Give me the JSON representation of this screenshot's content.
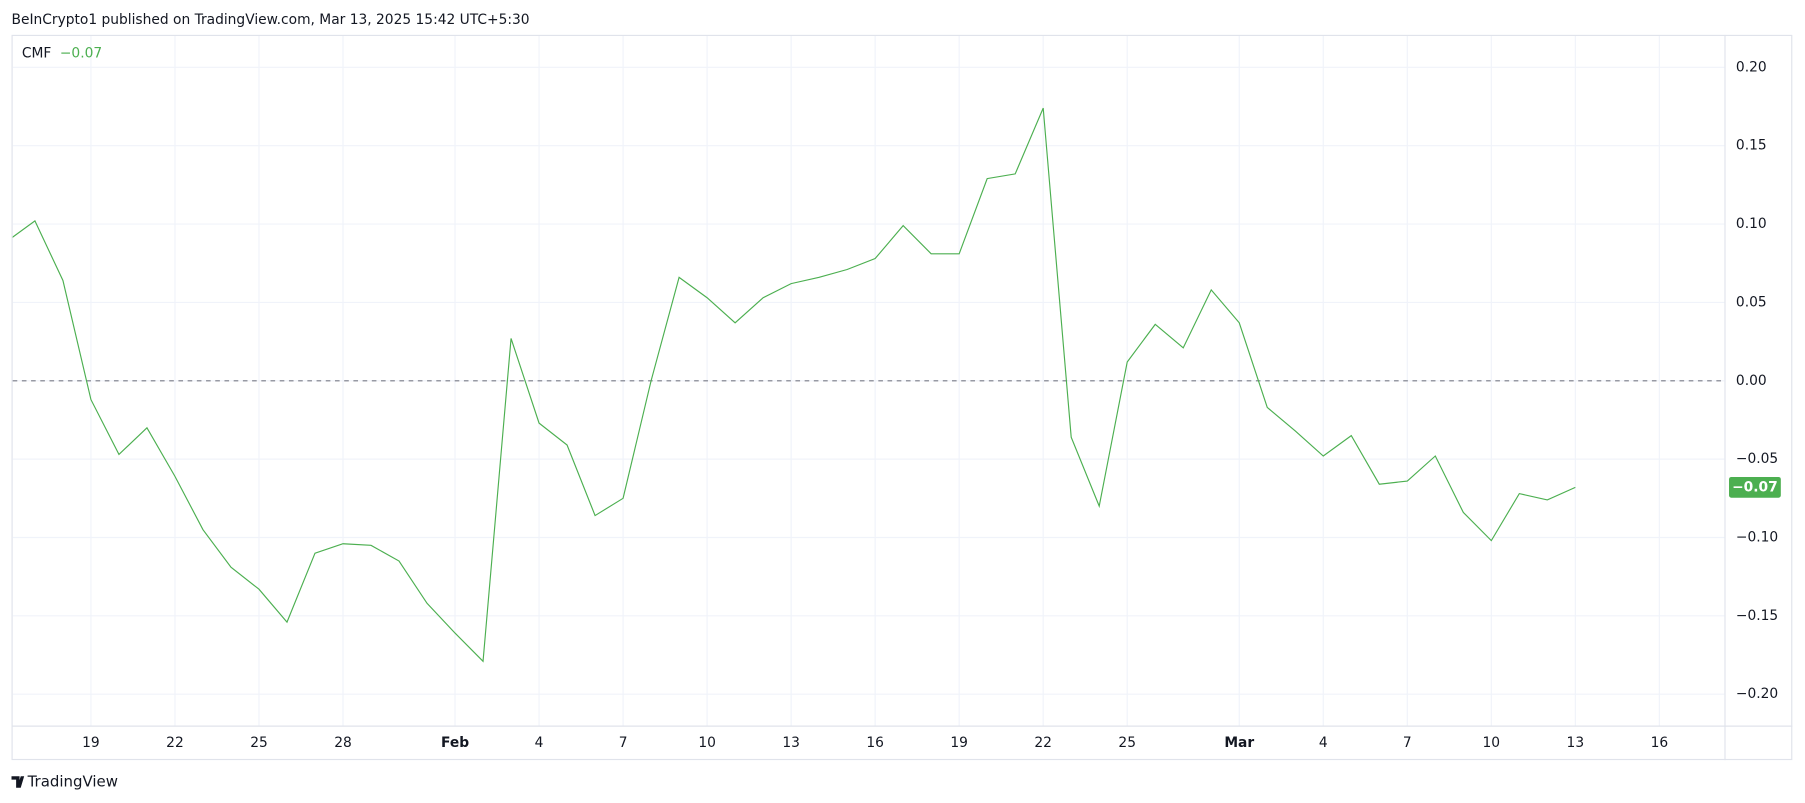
{
  "header": "BeInCrypto1 published on TradingView.com, Mar 13, 2025 15:42 UTC+5:30",
  "footer": "TradingView",
  "chart_data": {
    "type": "line",
    "categories": [
      null,
      null,
      null,
      "19",
      null,
      null,
      "22",
      null,
      null,
      "25",
      null,
      null,
      "28",
      null,
      null,
      null,
      "Feb",
      null,
      null,
      "4",
      null,
      null,
      "7",
      null,
      null,
      "10",
      null,
      null,
      "13",
      null,
      null,
      "16",
      null,
      null,
      "19",
      null,
      null,
      "22",
      null,
      null,
      "25",
      null,
      null,
      null,
      "Mar",
      null,
      null,
      "4",
      null,
      null,
      "7",
      null,
      null,
      "10",
      null,
      null,
      "13",
      null,
      null,
      "16",
      null
    ],
    "series": [
      {
        "name": "CMF",
        "color": "#4caf50",
        "last_label": "−0.07",
        "values": [
          0.089,
          0.102,
          0.064,
          -0.012,
          -0.047,
          -0.03,
          -0.061,
          -0.095,
          -0.119,
          -0.133,
          -0.154,
          -0.11,
          -0.104,
          -0.105,
          -0.115,
          -0.142,
          -0.161,
          -0.179,
          0.027,
          -0.027,
          -0.041,
          -0.086,
          -0.075,
          0.0,
          0.066,
          0.053,
          0.037,
          0.053,
          0.062,
          0.066,
          0.071,
          0.078,
          0.099,
          0.081,
          0.081,
          0.129,
          0.132,
          0.174,
          -0.036,
          -0.08,
          0.012,
          0.036,
          0.021,
          0.058,
          0.037,
          -0.017,
          -0.032,
          -0.048,
          -0.035,
          -0.066,
          -0.064,
          -0.048,
          -0.084,
          -0.102,
          -0.072,
          -0.076,
          -0.068,
          null,
          null,
          null,
          null
        ]
      }
    ],
    "ylim": [
      -0.22,
      0.22
    ],
    "yticks": [
      {
        "value": 0.2,
        "label": "0.20"
      },
      {
        "value": 0.15,
        "label": "0.15"
      },
      {
        "value": 0.1,
        "label": "0.10"
      },
      {
        "value": 0.05,
        "label": "0.05"
      },
      {
        "value": 0,
        "label": "0.00"
      },
      {
        "value": -0.05,
        "label": "−0.05"
      },
      {
        "value": -0.1,
        "label": "−0.10"
      },
      {
        "value": -0.15,
        "label": "−0.15"
      },
      {
        "value": -0.2,
        "label": "−0.20"
      }
    ],
    "grid": true,
    "zero_line": true
  }
}
